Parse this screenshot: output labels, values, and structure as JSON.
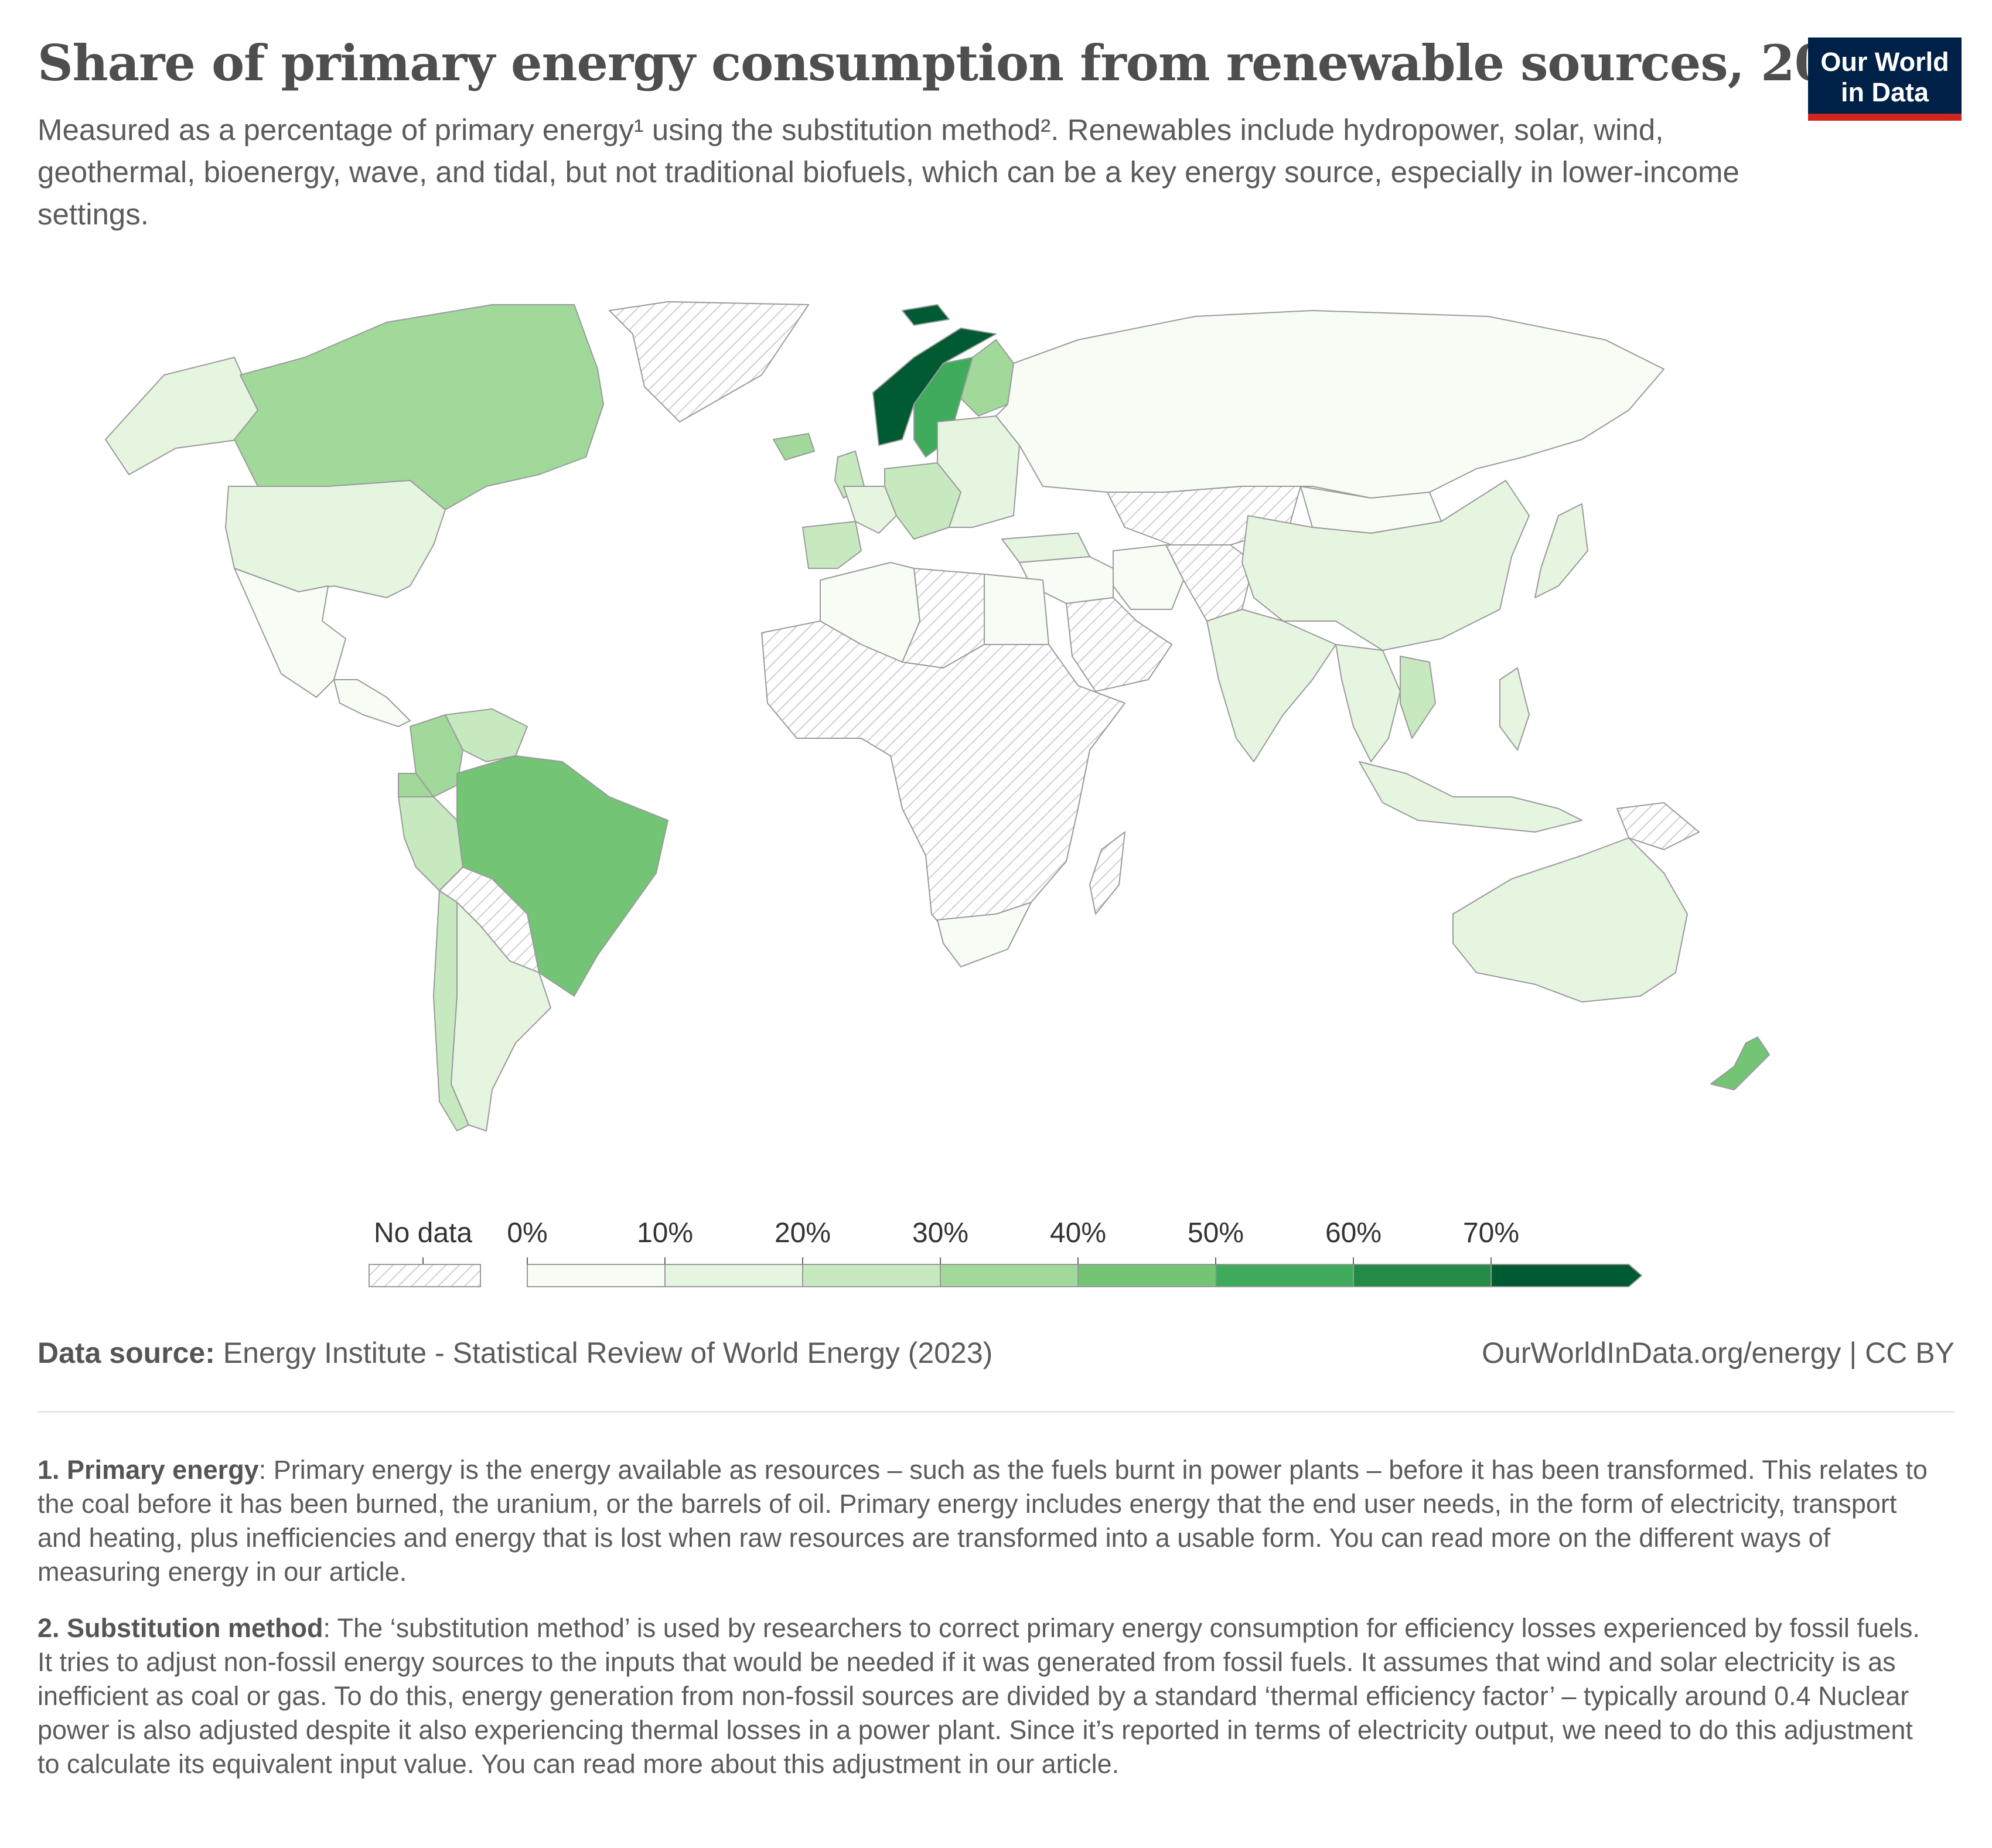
{
  "header": {
    "title": "Share of primary energy consumption from renewable sources, 2022",
    "subtitle": "Measured as a percentage of primary energy¹ using the substitution method². Renewables include hydropower, solar, wind, geothermal, bioenergy, wave, and tidal, but not traditional biofuels, which can be a key energy source, especially in lower-income settings.",
    "logo_line1": "Our World",
    "logo_line2": "in Data"
  },
  "legend": {
    "no_data_label": "No data",
    "bins": [
      {
        "label": "0%",
        "color": "#f7fcf5"
      },
      {
        "label": "10%",
        "color": "#e5f5e0"
      },
      {
        "label": "20%",
        "color": "#c7e9c0"
      },
      {
        "label": "30%",
        "color": "#a1d99b"
      },
      {
        "label": "40%",
        "color": "#74c476"
      },
      {
        "label": "50%",
        "color": "#41ab5d"
      },
      {
        "label": "60%",
        "color": "#238b45"
      },
      {
        "label": "70%",
        "color": "#005a32"
      }
    ]
  },
  "colors": {
    "no_data_hatch": "#cfcfcf",
    "border": "#9a9a9a",
    "logo_bg": "#002147",
    "logo_bar": "#ce261e"
  },
  "map_data": {
    "regions": [
      {
        "id": "canada",
        "bin": 3
      },
      {
        "id": "alaska",
        "bin": 1
      },
      {
        "id": "usa",
        "bin": 1
      },
      {
        "id": "mexico",
        "bin": 0
      },
      {
        "id": "central-america",
        "bin": 0
      },
      {
        "id": "greenland",
        "bin": -1
      },
      {
        "id": "colombia",
        "bin": 3
      },
      {
        "id": "venezuela",
        "bin": 2
      },
      {
        "id": "ecuador",
        "bin": 3
      },
      {
        "id": "peru",
        "bin": 2
      },
      {
        "id": "brazil",
        "bin": 4
      },
      {
        "id": "bolivia-paraguay",
        "bin": -1
      },
      {
        "id": "chile",
        "bin": 2
      },
      {
        "id": "argentina",
        "bin": 1
      },
      {
        "id": "iceland",
        "bin": 3
      },
      {
        "id": "uk",
        "bin": 2
      },
      {
        "id": "iberia",
        "bin": 2
      },
      {
        "id": "france",
        "bin": 1
      },
      {
        "id": "central-europe",
        "bin": 2
      },
      {
        "id": "norway",
        "bin": 7
      },
      {
        "id": "sweden",
        "bin": 5
      },
      {
        "id": "finland",
        "bin": 3
      },
      {
        "id": "eastern-europe",
        "bin": 1
      },
      {
        "id": "svalbard",
        "bin": 7
      },
      {
        "id": "russia",
        "bin": 0
      },
      {
        "id": "kazakhstan",
        "bin": -1
      },
      {
        "id": "turkey",
        "bin": 1
      },
      {
        "id": "middle-east",
        "bin": 0
      },
      {
        "id": "iran",
        "bin": 0
      },
      {
        "id": "arabian-peninsula",
        "bin": -1
      },
      {
        "id": "north-africa-west",
        "bin": 0
      },
      {
        "id": "libya-sahara",
        "bin": -1
      },
      {
        "id": "egypt",
        "bin": 0
      },
      {
        "id": "sub-saharan-africa",
        "bin": -1
      },
      {
        "id": "south-africa",
        "bin": 0
      },
      {
        "id": "madagascar",
        "bin": -1
      },
      {
        "id": "china",
        "bin": 1
      },
      {
        "id": "mongolia",
        "bin": 0
      },
      {
        "id": "india",
        "bin": 1
      },
      {
        "id": "pakistan-central-asia",
        "bin": -1
      },
      {
        "id": "southeast-asia",
        "bin": 1
      },
      {
        "id": "vietnam",
        "bin": 2
      },
      {
        "id": "indonesia",
        "bin": 1
      },
      {
        "id": "philippines",
        "bin": 1
      },
      {
        "id": "japan",
        "bin": 1
      },
      {
        "id": "papua-new-guinea",
        "bin": -1
      },
      {
        "id": "australia",
        "bin": 1
      },
      {
        "id": "new-zealand",
        "bin": 4
      }
    ]
  },
  "footer": {
    "source_label": "Data source:",
    "source_text": "Energy Institute - Statistical Review of World Energy (2023)",
    "url": "OurWorldInData.org/energy | CC BY",
    "note1_title": "1. Primary energy",
    "note1_text": ": Primary energy is the energy available as resources – such as the fuels burnt in power plants – before it has been transformed. This relates to the coal before it has been burned, the uranium, or the barrels of oil. Primary energy includes energy that the end user needs, in the form of electricity, transport and heating, plus inefficiencies and energy that is lost when raw resources are transformed into a usable form. You can read more on the different ways of measuring energy in our article.",
    "note2_title": "2. Substitution method",
    "note2_text": ": The ‘substitution method’ is used by researchers to correct primary energy consumption for efficiency losses experienced by fossil fuels. It tries to adjust non-fossil energy sources to the inputs that would be needed if it was generated from fossil fuels. It assumes that wind and solar electricity is as inefficient as coal or gas. To do this, energy generation from non-fossil sources are divided by a standard ‘thermal efficiency factor’ – typically around 0.4 Nuclear power is also adjusted despite it also experiencing thermal losses in a power plant. Since it’s reported in terms of electricity output, we need to do this adjustment to calculate its equivalent input value. You can read more about this adjustment in our article."
  }
}
